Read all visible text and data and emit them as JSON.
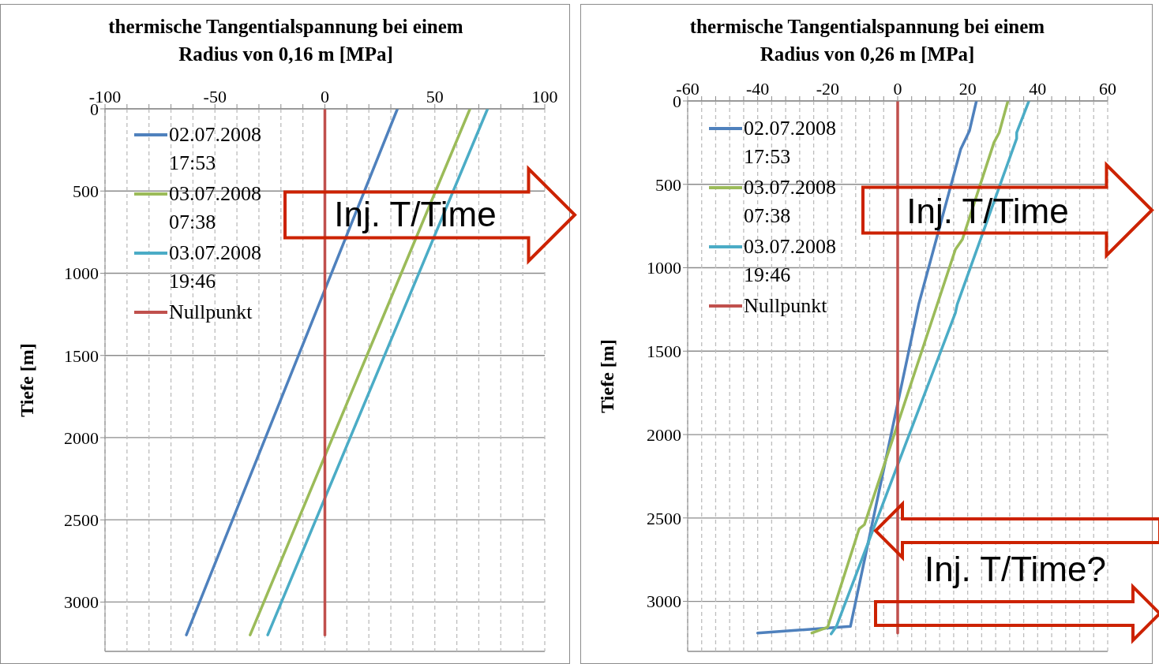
{
  "chart_data": [
    {
      "type": "line",
      "title": "thermische Tangentialspannung bei einem Radius von 0,16 m [MPa]",
      "ylabel": "Tiefe [m]",
      "xlim": [
        -100,
        100
      ],
      "xticks": [
        -100,
        {
          "value": -90,
          "label": null
        },
        {
          "value": -80,
          "label": null
        },
        {
          "value": -70,
          "label": null
        },
        {
          "value": -60,
          "label": null
        },
        -50,
        {
          "value": -40,
          "label": null
        },
        {
          "value": -30,
          "label": null
        },
        {
          "value": -20,
          "label": null
        },
        {
          "value": -10,
          "label": null
        },
        0,
        {
          "value": 10,
          "label": null
        },
        {
          "value": 20,
          "label": null
        },
        {
          "value": 30,
          "label": null
        },
        {
          "value": 40,
          "label": null
        },
        50,
        {
          "value": 60,
          "label": null
        },
        {
          "value": 70,
          "label": null
        },
        {
          "value": 80,
          "label": null
        },
        {
          "value": 90,
          "label": null
        },
        100
      ],
      "ylim": [
        3300,
        0
      ],
      "yticks": [
        0,
        500,
        1000,
        1500,
        2000,
        2500,
        3000
      ],
      "grid": true,
      "legend": "top left",
      "series": [
        {
          "name": "02.07.2008 17:53",
          "color": "#4f81bd",
          "x": [
            33,
            -63
          ],
          "values": [
            0,
            3200
          ]
        },
        {
          "name": "03.07.2008 07:38",
          "color": "#9bbb59",
          "x": [
            66,
            -34
          ],
          "values": [
            0,
            3200
          ]
        },
        {
          "name": "03.07.2008 19:46",
          "color": "#4bacc6",
          "x": [
            74,
            -26
          ],
          "values": [
            0,
            3200
          ]
        },
        {
          "name": "Nullpunkt",
          "color": "#c0504d",
          "x": [
            0,
            0
          ],
          "values": [
            0,
            3200
          ]
        }
      ],
      "annotations": [
        "Inj. T/Time"
      ]
    },
    {
      "type": "line",
      "title": "thermische Tangentialspannung bei einem Radius von 0,26 m [MPa]",
      "ylabel": "Tiefe [m]",
      "xlim": [
        -60,
        60
      ],
      "xticks": [
        -60,
        {
          "value": -56,
          "label": null
        },
        {
          "value": -52,
          "label": null
        },
        {
          "value": -48,
          "label": null
        },
        {
          "value": -44,
          "label": null
        },
        -40,
        {
          "value": -36,
          "label": null
        },
        {
          "value": -32,
          "label": null
        },
        {
          "value": -28,
          "label": null
        },
        {
          "value": -24,
          "label": null
        },
        -20,
        {
          "value": -16,
          "label": null
        },
        {
          "value": -12,
          "label": null
        },
        {
          "value": -8,
          "label": null
        },
        {
          "value": -4,
          "label": null
        },
        0,
        {
          "value": 4,
          "label": null
        },
        {
          "value": 8,
          "label": null
        },
        {
          "value": 12,
          "label": null
        },
        {
          "value": 16,
          "label": null
        },
        20,
        {
          "value": 24,
          "label": null
        },
        {
          "value": 28,
          "label": null
        },
        {
          "value": 32,
          "label": null
        },
        {
          "value": 36,
          "label": null
        },
        40,
        {
          "value": 44,
          "label": null
        },
        {
          "value": 48,
          "label": null
        },
        {
          "value": 52,
          "label": null
        },
        {
          "value": 56,
          "label": null
        },
        60
      ],
      "ylim": [
        3300,
        0
      ],
      "yticks": [
        0,
        500,
        1000,
        1500,
        2000,
        2500,
        3000
      ],
      "grid": true,
      "legend": "top left",
      "series": [
        {
          "name": "02.07.2008 17:53",
          "color": "#4f81bd",
          "x": [
            22.5,
            20.5,
            18,
            6,
            -13.5,
            -40
          ],
          "values": [
            0,
            180,
            290,
            1220,
            3150,
            3190
          ]
        },
        {
          "name": "03.07.2008 07:38",
          "color": "#9bbb59",
          "x": [
            31.5,
            29,
            27.5,
            18.5,
            16.5,
            -9.5,
            -11,
            -20,
            -24.5
          ],
          "values": [
            0,
            190,
            250,
            830,
            890,
            2540,
            2565,
            3155,
            3190
          ]
        },
        {
          "name": "03.07.2008 19:46",
          "color": "#4bacc6",
          "x": [
            37.5,
            34,
            34,
            17,
            16.5,
            -17.5,
            -19
          ],
          "values": [
            0,
            190,
            225,
            1220,
            1270,
            3150,
            3195
          ]
        },
        {
          "name": "Nullpunkt",
          "color": "#c0504d",
          "x": [
            0,
            0
          ],
          "values": [
            0,
            3190
          ]
        }
      ],
      "annotations": [
        "Inj. T/Time",
        "Inj. T/Time?"
      ]
    }
  ]
}
